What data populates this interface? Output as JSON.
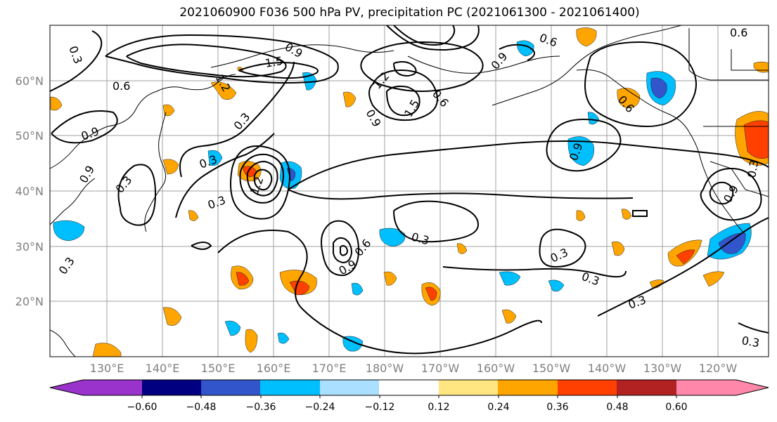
{
  "title": "2021060900 F036 500 hPa PV, precipitation PC (2021061300 - 2021061400)",
  "map": {
    "lon_labels": [
      "130°E",
      "140°E",
      "150°E",
      "160°E",
      "170°E",
      "180°W",
      "170°W",
      "160°W",
      "150°W",
      "140°W",
      "130°W",
      "120°W"
    ],
    "lat_labels": [
      "60°N",
      "50°N",
      "40°N",
      "30°N",
      "20°N"
    ],
    "contour_labels": [
      "0.3",
      "0.9",
      "0.6",
      "1.5",
      "1.2",
      "0.9",
      "0.6",
      "0.9",
      "1.2",
      "1.5",
      "0.6",
      "0.9",
      "0.3",
      "0.3",
      "0.3",
      "0.9",
      "0.3",
      "0.9",
      "0.6",
      "0.3",
      "0.3",
      "0.3",
      "0.3",
      "0.3",
      "0.9",
      "0.6",
      "0.3",
      "1.2",
      "0.9",
      "0.6",
      "0.3"
    ]
  },
  "colorbar": {
    "ticks": [
      "−0.60",
      "−0.48",
      "−0.36",
      "−0.24",
      "−0.12",
      "0.12",
      "0.24",
      "0.36",
      "0.48",
      "0.60"
    ],
    "colors": [
      "#9933cc",
      "#000080",
      "#3355cc",
      "#00bfff",
      "#aadfff",
      "#ffffff",
      "#ffe680",
      "#ffa500",
      "#ff4000",
      "#b22222",
      "#ff88aa"
    ]
  }
}
